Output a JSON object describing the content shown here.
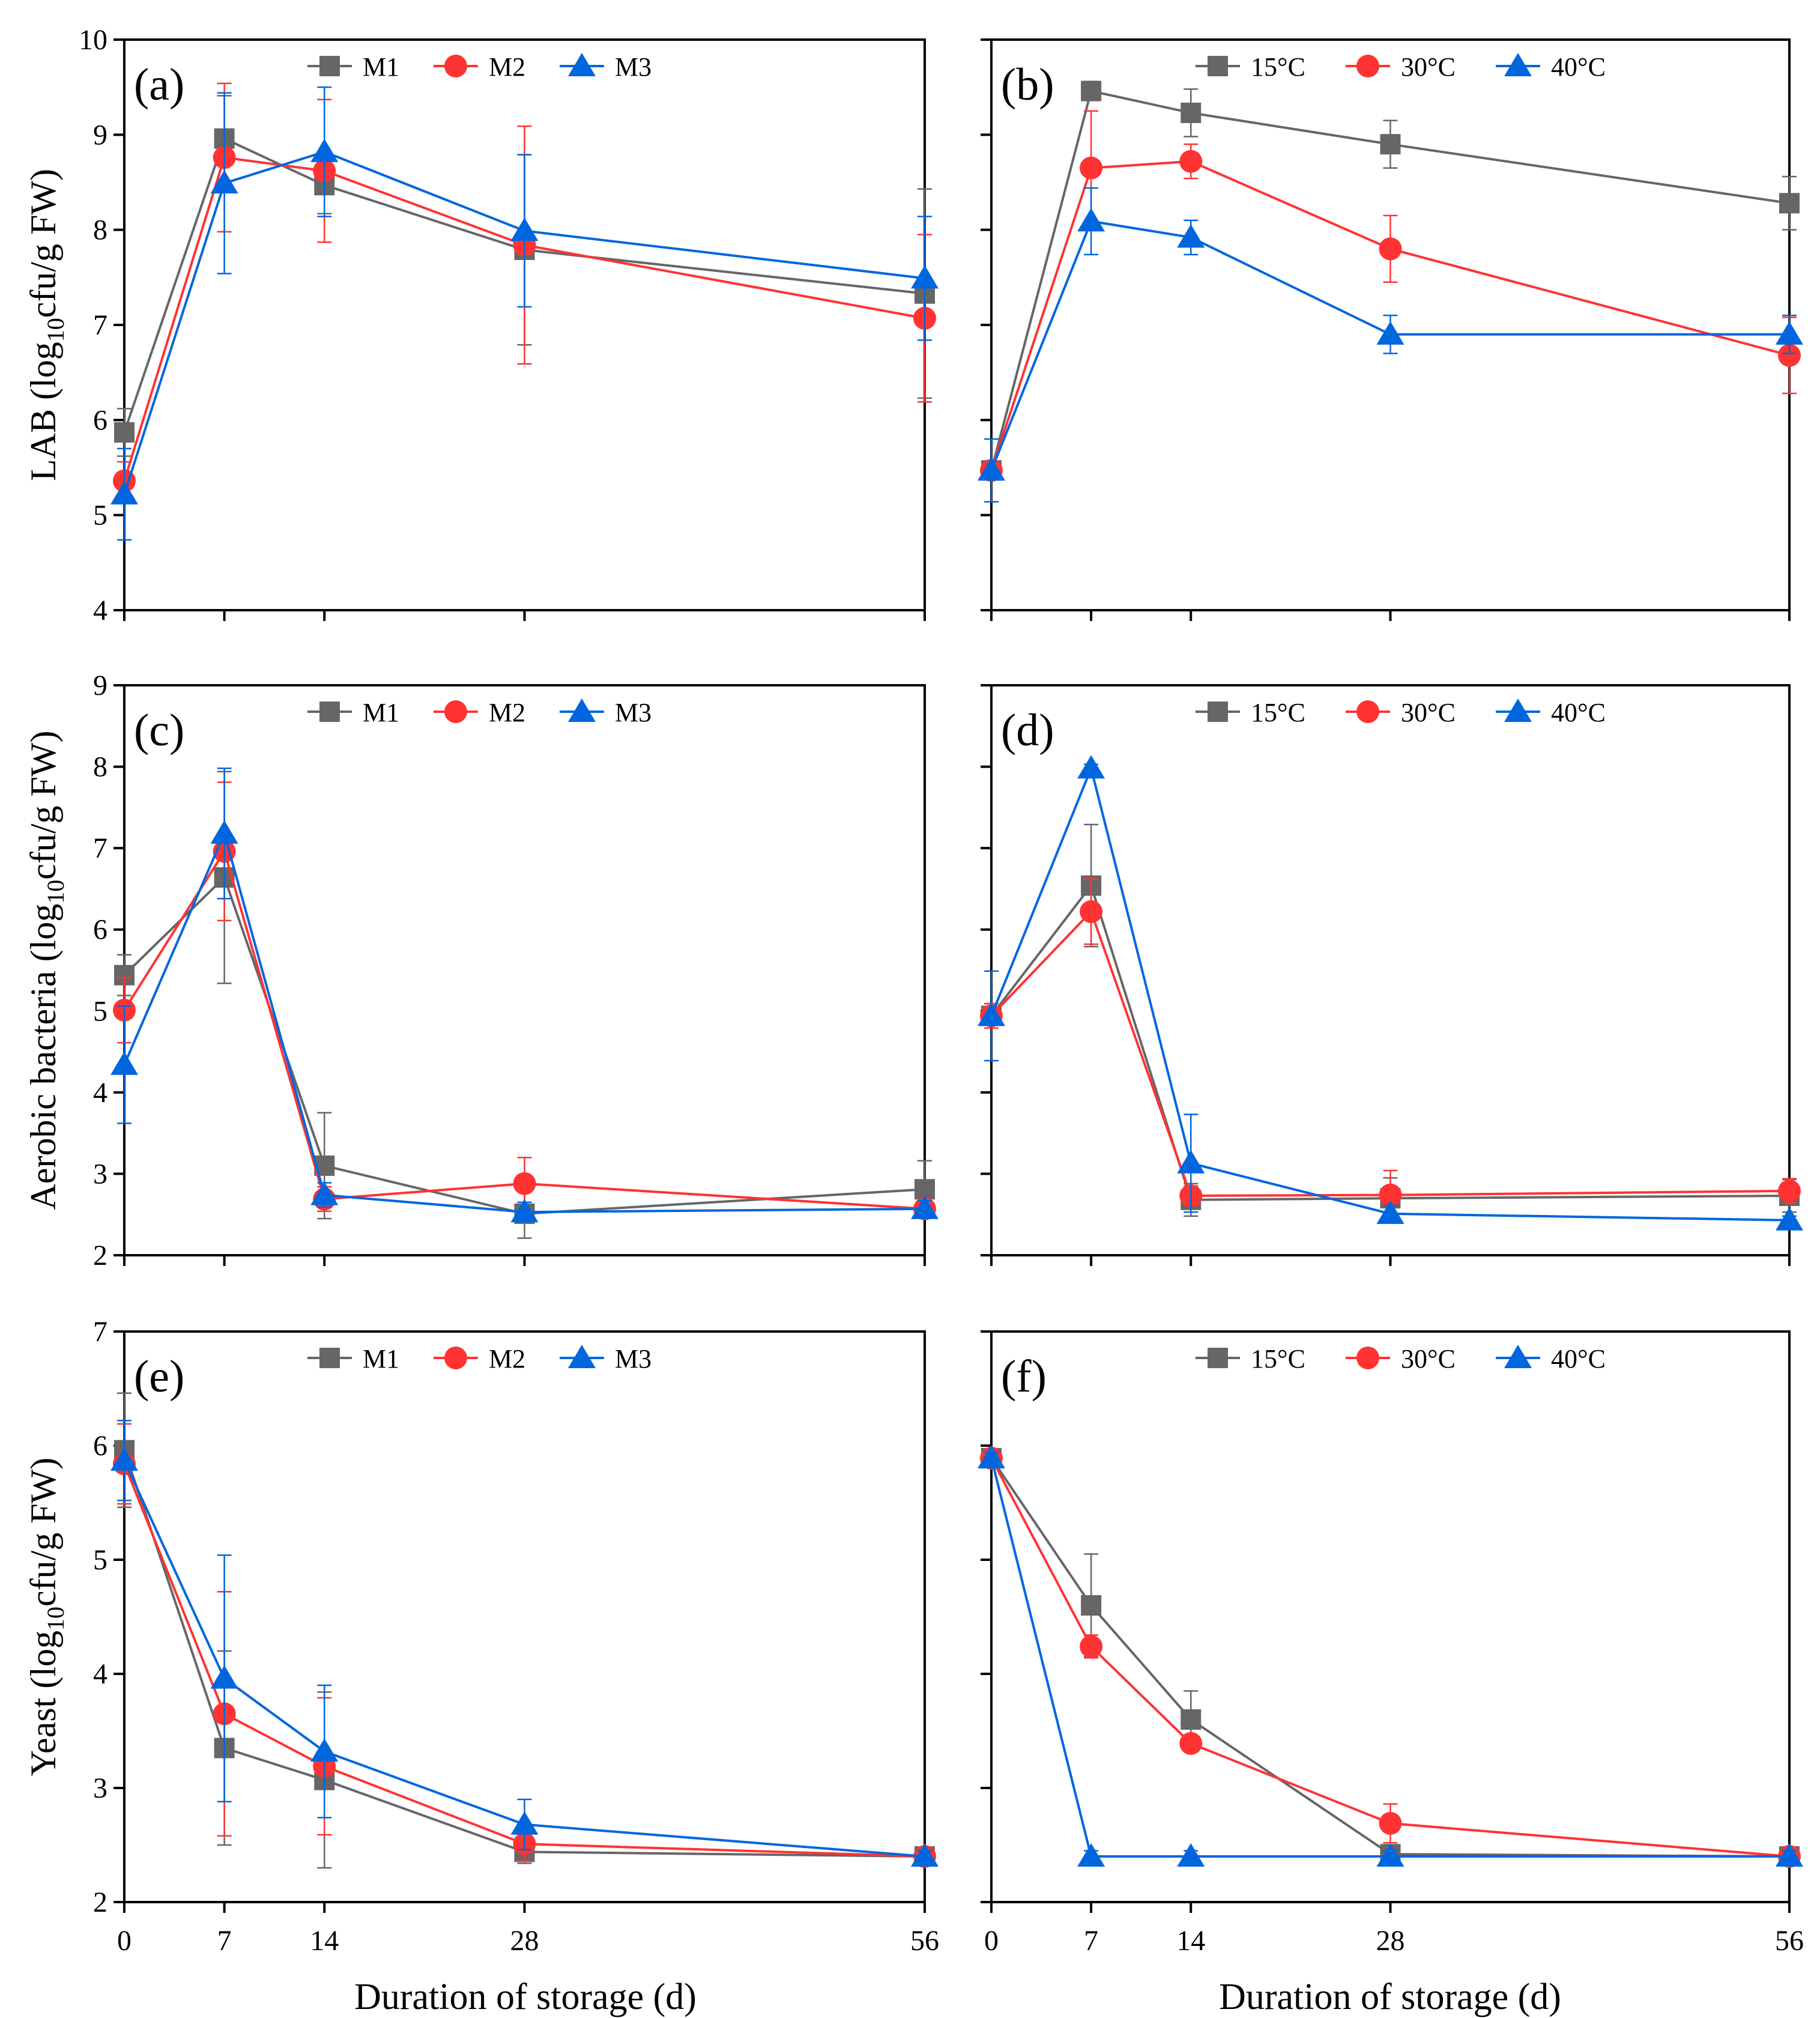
{
  "colors": {
    "M1": "#666666",
    "M2": "#FF3333",
    "M3": "#0066DD",
    "15C": "#666666",
    "30C": "#FF3333",
    "40C": "#0066DD"
  },
  "xlabel": "Duration of storage (d)",
  "chart_data": [
    {
      "id": "a",
      "type": "line",
      "panel_label": "(a)",
      "ylabel": {
        "pre": "LAB (log",
        "sub": "10",
        "post": "cfu/g FW)"
      },
      "x": [
        0,
        7,
        14,
        28,
        56
      ],
      "xlim": [
        0,
        56
      ],
      "ylim": [
        4,
        10
      ],
      "yticks": [
        4,
        5,
        6,
        7,
        8,
        9,
        10
      ],
      "series": [
        {
          "name": "M1",
          "marker": "square",
          "values": [
            5.87,
            8.96,
            8.47,
            7.79,
            7.33
          ],
          "errors": [
            0.25,
            0.45,
            0.3,
            1.0,
            1.1
          ]
        },
        {
          "name": "M2",
          "marker": "circle",
          "values": [
            5.36,
            8.76,
            8.62,
            7.84,
            7.07
          ],
          "errors": [
            0.2,
            0.78,
            0.75,
            1.25,
            0.88
          ]
        },
        {
          "name": "M3",
          "marker": "triangle",
          "values": [
            5.22,
            8.49,
            8.82,
            7.99,
            7.49
          ],
          "errors": [
            0.48,
            0.95,
            0.68,
            0.8,
            0.65
          ]
        }
      ]
    },
    {
      "id": "b",
      "type": "line",
      "panel_label": "(b)",
      "x": [
        0,
        7,
        14,
        28,
        56
      ],
      "xlim": [
        0,
        56
      ],
      "ylim": [
        4,
        10
      ],
      "yticks": [
        4,
        5,
        6,
        7,
        8,
        9,
        10
      ],
      "series": [
        {
          "name": "15°C",
          "color_key": "15C",
          "marker": "square",
          "values": [
            5.47,
            9.46,
            9.23,
            8.9,
            8.28
          ],
          "errors": [
            0.08,
            0.1,
            0.25,
            0.25,
            0.28
          ]
        },
        {
          "name": "30°C",
          "color_key": "30C",
          "marker": "circle",
          "values": [
            5.47,
            8.65,
            8.72,
            7.8,
            6.68
          ],
          "errors": [
            0.08,
            0.6,
            0.18,
            0.35,
            0.4
          ]
        },
        {
          "name": "40°C",
          "color_key": "40C",
          "marker": "triangle",
          "values": [
            5.47,
            8.09,
            7.92,
            6.9,
            6.9
          ],
          "errors": [
            0.33,
            0.35,
            0.18,
            0.2,
            0.2
          ]
        }
      ]
    },
    {
      "id": "c",
      "type": "line",
      "panel_label": "(c)",
      "ylabel": {
        "pre": "Aerobic bacteria (log",
        "sub": "10",
        "post": "cfu/g FW)"
      },
      "x": [
        0,
        7,
        14,
        28,
        56
      ],
      "xlim": [
        0,
        56
      ],
      "ylim": [
        2,
        9
      ],
      "yticks": [
        2,
        3,
        4,
        5,
        6,
        7,
        8,
        9
      ],
      "series": [
        {
          "name": "M1",
          "marker": "square",
          "values": [
            5.44,
            6.64,
            3.1,
            2.51,
            2.81
          ],
          "errors": [
            0.25,
            1.3,
            0.65,
            0.3,
            0.35
          ]
        },
        {
          "name": "M2",
          "marker": "circle",
          "values": [
            5.01,
            6.96,
            2.69,
            2.88,
            2.57
          ],
          "errors": [
            0.4,
            0.85,
            0.15,
            0.32,
            0.1
          ]
        },
        {
          "name": "M3",
          "marker": "triangle",
          "values": [
            4.34,
            7.18,
            2.74,
            2.53,
            2.57
          ],
          "errors": [
            0.72,
            0.8,
            0.15,
            0.12,
            0.1
          ]
        }
      ]
    },
    {
      "id": "d",
      "type": "line",
      "panel_label": "(d)",
      "x": [
        0,
        7,
        14,
        28,
        56
      ],
      "xlim": [
        0,
        56
      ],
      "ylim": [
        2,
        9
      ],
      "yticks": [
        2,
        3,
        4,
        5,
        6,
        7,
        8,
        9
      ],
      "series": [
        {
          "name": "15°C",
          "color_key": "15C",
          "marker": "square",
          "values": [
            4.94,
            6.54,
            2.68,
            2.7,
            2.73
          ],
          "errors": [
            0.15,
            0.75,
            0.2,
            0.25,
            0.2
          ]
        },
        {
          "name": "30°C",
          "color_key": "30C",
          "marker": "circle",
          "values": [
            4.94,
            6.22,
            2.73,
            2.74,
            2.79
          ],
          "errors": [
            0.15,
            0.4,
            0.12,
            0.3,
            0.15
          ]
        },
        {
          "name": "40°C",
          "color_key": "40C",
          "marker": "triangle",
          "values": [
            4.94,
            7.98,
            3.13,
            2.51,
            2.43
          ],
          "errors": [
            0.55,
            0.05,
            0.6,
            0.1,
            0.05
          ]
        }
      ]
    },
    {
      "id": "e",
      "type": "line",
      "panel_label": "(e)",
      "ylabel": {
        "pre": "Yeast (log",
        "sub": "10",
        "post": "cfu/g FW)"
      },
      "x": [
        0,
        7,
        14,
        28,
        56
      ],
      "xlim": [
        0,
        56
      ],
      "ylim": [
        2,
        7
      ],
      "yticks": [
        2,
        3,
        4,
        5,
        6,
        7
      ],
      "series": [
        {
          "name": "M1",
          "marker": "square",
          "values": [
            5.96,
            3.35,
            3.07,
            2.44,
            2.4
          ],
          "errors": [
            0.5,
            0.85,
            0.77,
            0.1,
            0.05
          ]
        },
        {
          "name": "M2",
          "marker": "circle",
          "values": [
            5.84,
            3.65,
            3.19,
            2.51,
            2.4
          ],
          "errors": [
            0.35,
            1.07,
            0.6,
            0.15,
            0.05
          ]
        },
        {
          "name": "M3",
          "marker": "triangle",
          "values": [
            5.87,
            3.96,
            3.32,
            2.68,
            2.4
          ],
          "errors": [
            0.35,
            1.08,
            0.58,
            0.22,
            0.05
          ]
        }
      ]
    },
    {
      "id": "f",
      "type": "line",
      "panel_label": "(f)",
      "x": [
        0,
        7,
        14,
        28,
        56
      ],
      "xlim": [
        0,
        56
      ],
      "ylim": [
        2,
        7
      ],
      "yticks": [
        2,
        3,
        4,
        5,
        6,
        7
      ],
      "series": [
        {
          "name": "15°C",
          "color_key": "15C",
          "marker": "square",
          "values": [
            5.89,
            4.6,
            3.6,
            2.42,
            2.4
          ],
          "errors": [
            0.05,
            0.45,
            0.25,
            0.05,
            0.05
          ]
        },
        {
          "name": "30°C",
          "color_key": "30C",
          "marker": "circle",
          "values": [
            5.89,
            4.24,
            3.39,
            2.69,
            2.4
          ],
          "errors": [
            0.05,
            0.1,
            0.05,
            0.17,
            0.05
          ]
        },
        {
          "name": "40°C",
          "color_key": "40C",
          "marker": "triangle",
          "values": [
            5.89,
            2.4,
            2.4,
            2.4,
            2.4
          ],
          "errors": [
            0.05,
            0.05,
            0.05,
            0.05,
            0.05
          ]
        }
      ]
    }
  ]
}
